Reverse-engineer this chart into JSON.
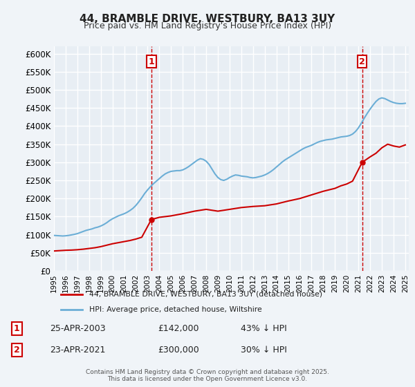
{
  "title": "44, BRAMBLE DRIVE, WESTBURY, BA13 3UY",
  "subtitle": "Price paid vs. HM Land Registry's House Price Index (HPI)",
  "bg_color": "#f0f4f8",
  "plot_bg_color": "#e8eef4",
  "grid_color": "#ffffff",
  "hpi_color": "#6baed6",
  "price_color": "#cc0000",
  "dashed_color": "#cc0000",
  "ylim": [
    0,
    620000
  ],
  "yticks": [
    0,
    50000,
    100000,
    150000,
    200000,
    250000,
    300000,
    350000,
    400000,
    450000,
    500000,
    550000,
    600000
  ],
  "transaction1": {
    "date_num": 2003.32,
    "price": 142000,
    "label": "1",
    "text": "25-APR-2003",
    "amount": "£142,000",
    "pct": "43% ↓ HPI"
  },
  "transaction2": {
    "date_num": 2021.32,
    "price": 300000,
    "label": "2",
    "text": "23-APR-2021",
    "amount": "£300,000",
    "pct": "30% ↓ HPI"
  },
  "legend_line1": "44, BRAMBLE DRIVE, WESTBURY, BA13 3UY (detached house)",
  "legend_line2": "HPI: Average price, detached house, Wiltshire",
  "footer": "Contains HM Land Registry data © Crown copyright and database right 2025.\nThis data is licensed under the Open Government Licence v3.0.",
  "hpi_x": [
    1995.0,
    1995.25,
    1995.5,
    1995.75,
    1996.0,
    1996.25,
    1996.5,
    1996.75,
    1997.0,
    1997.25,
    1997.5,
    1997.75,
    1998.0,
    1998.25,
    1998.5,
    1998.75,
    1999.0,
    1999.25,
    1999.5,
    1999.75,
    2000.0,
    2000.25,
    2000.5,
    2000.75,
    2001.0,
    2001.25,
    2001.5,
    2001.75,
    2002.0,
    2002.25,
    2002.5,
    2002.75,
    2003.0,
    2003.25,
    2003.5,
    2003.75,
    2004.0,
    2004.25,
    2004.5,
    2004.75,
    2005.0,
    2005.25,
    2005.5,
    2005.75,
    2006.0,
    2006.25,
    2006.5,
    2006.75,
    2007.0,
    2007.25,
    2007.5,
    2007.75,
    2008.0,
    2008.25,
    2008.5,
    2008.75,
    2009.0,
    2009.25,
    2009.5,
    2009.75,
    2010.0,
    2010.25,
    2010.5,
    2010.75,
    2011.0,
    2011.25,
    2011.5,
    2011.75,
    2012.0,
    2012.25,
    2012.5,
    2012.75,
    2013.0,
    2013.25,
    2013.5,
    2013.75,
    2014.0,
    2014.25,
    2014.5,
    2014.75,
    2015.0,
    2015.25,
    2015.5,
    2015.75,
    2016.0,
    2016.25,
    2016.5,
    2016.75,
    2017.0,
    2017.25,
    2017.5,
    2017.75,
    2018.0,
    2018.25,
    2018.5,
    2018.75,
    2019.0,
    2019.25,
    2019.5,
    2019.75,
    2020.0,
    2020.25,
    2020.5,
    2020.75,
    2021.0,
    2021.25,
    2021.5,
    2021.75,
    2022.0,
    2022.25,
    2022.5,
    2022.75,
    2023.0,
    2023.25,
    2023.5,
    2023.75,
    2024.0,
    2024.25,
    2024.5,
    2024.75,
    2025.0
  ],
  "hpi_y": [
    98000,
    97500,
    97000,
    96500,
    97000,
    98000,
    99500,
    101000,
    103000,
    106000,
    109000,
    112000,
    114000,
    116000,
    119000,
    121000,
    124000,
    128000,
    133000,
    139000,
    144000,
    148000,
    152000,
    155000,
    158000,
    162000,
    167000,
    173000,
    181000,
    191000,
    202000,
    214000,
    224000,
    233000,
    241000,
    248000,
    255000,
    262000,
    268000,
    272000,
    275000,
    276000,
    277000,
    277000,
    279000,
    283000,
    288000,
    294000,
    300000,
    306000,
    310000,
    308000,
    303000,
    294000,
    281000,
    268000,
    258000,
    252000,
    250000,
    253000,
    258000,
    262000,
    265000,
    264000,
    262000,
    261000,
    260000,
    258000,
    257000,
    258000,
    260000,
    262000,
    265000,
    269000,
    274000,
    280000,
    287000,
    294000,
    301000,
    307000,
    312000,
    317000,
    322000,
    327000,
    332000,
    337000,
    341000,
    344000,
    347000,
    351000,
    355000,
    358000,
    360000,
    362000,
    363000,
    364000,
    366000,
    368000,
    370000,
    371000,
    372000,
    374000,
    378000,
    385000,
    395000,
    408000,
    422000,
    435000,
    447000,
    458000,
    468000,
    475000,
    478000,
    476000,
    472000,
    468000,
    465000,
    463000,
    462000,
    462000,
    463000
  ],
  "price_x": [
    1995.0,
    1995.5,
    1996.0,
    1996.5,
    1997.0,
    1997.5,
    1998.0,
    1998.5,
    1999.0,
    1999.5,
    2000.0,
    2000.5,
    2001.0,
    2001.5,
    2002.0,
    2002.5,
    2003.32,
    2004.0,
    2005.0,
    2006.0,
    2007.0,
    2008.0,
    2009.0,
    2010.0,
    2011.0,
    2012.0,
    2013.0,
    2014.0,
    2015.0,
    2016.0,
    2017.0,
    2018.0,
    2019.0,
    2019.5,
    2020.0,
    2020.5,
    2021.32,
    2022.0,
    2022.5,
    2023.0,
    2023.5,
    2024.0,
    2024.5,
    2025.0
  ],
  "price_y": [
    55000,
    56000,
    57000,
    57500,
    58500,
    60000,
    62000,
    64000,
    67000,
    71000,
    75000,
    78000,
    81000,
    84000,
    88000,
    93000,
    142000,
    148000,
    152000,
    158000,
    165000,
    170000,
    165000,
    170000,
    175000,
    178000,
    180000,
    185000,
    193000,
    200000,
    210000,
    220000,
    228000,
    235000,
    240000,
    248000,
    300000,
    315000,
    325000,
    340000,
    350000,
    345000,
    342000,
    348000
  ]
}
